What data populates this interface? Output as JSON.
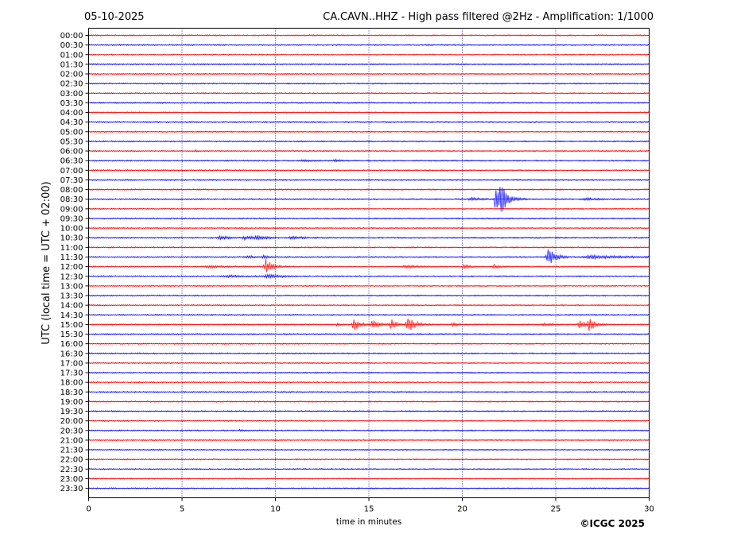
{
  "header": {
    "date": "05-10-2025",
    "title": "CA.CAVN..HHZ - High pass filtered @2Hz - Amplification: 1/1000"
  },
  "footer": {
    "copyright": "©ICGC 2025"
  },
  "colors": {
    "trace_a": "#ff0000",
    "trace_b": "#0000ff",
    "grid": "#000080",
    "axes": "#000000"
  },
  "chart_data": {
    "type": "line",
    "title": "CA.CAVN..HHZ - High pass filtered @2Hz - Amplification: 1/1000",
    "xlabel": "time in minutes",
    "ylabel": "UTC (local time = UTC + 02:00)",
    "xlim": [
      0,
      30
    ],
    "x_ticks": [
      "0",
      "5",
      "10",
      "15",
      "20",
      "25",
      "30"
    ],
    "x_tick_values": [
      0,
      5,
      10,
      15,
      20,
      25,
      30
    ],
    "vertical_gridlines_at": [
      5,
      10,
      15,
      20,
      25
    ],
    "grid": "vertical dotted",
    "trace_color_cycle": [
      "red",
      "blue"
    ],
    "y_tick_labels": [
      "00:00",
      "00:30",
      "01:00",
      "01:30",
      "02:00",
      "02:30",
      "03:00",
      "03:30",
      "04:00",
      "04:30",
      "05:00",
      "05:30",
      "06:00",
      "06:30",
      "07:00",
      "07:30",
      "08:00",
      "08:30",
      "09:00",
      "09:30",
      "10:00",
      "10:30",
      "11:00",
      "11:30",
      "12:00",
      "12:30",
      "13:00",
      "13:30",
      "14:00",
      "14:30",
      "15:00",
      "15:30",
      "16:00",
      "16:30",
      "17:00",
      "17:30",
      "18:00",
      "18:30",
      "19:00",
      "19:30",
      "20:00",
      "20:30",
      "21:00",
      "21:30",
      "22:00",
      "22:30",
      "23:00",
      "23:30"
    ],
    "noise_level": 0.6,
    "events": [
      {
        "row": "06:00",
        "t": 5.7,
        "amp": 2,
        "dur": 0.1
      },
      {
        "row": "06:30",
        "t": 11.5,
        "amp": 1.2,
        "dur": 0.8
      },
      {
        "row": "06:30",
        "t": 13.2,
        "amp": 1.2,
        "dur": 0.5
      },
      {
        "row": "08:30",
        "t": 20.5,
        "amp": 2,
        "dur": 0.8
      },
      {
        "row": "08:30",
        "t": 21.8,
        "amp": 24,
        "dur": 0.3
      },
      {
        "row": "08:30",
        "t": 22.1,
        "amp": 17,
        "dur": 0.6
      },
      {
        "row": "08:30",
        "t": 26.6,
        "amp": 2,
        "dur": 0.8
      },
      {
        "row": "10:30",
        "t": 7.0,
        "amp": 2.5,
        "dur": 0.8
      },
      {
        "row": "10:30",
        "t": 8.4,
        "amp": 2,
        "dur": 0.8
      },
      {
        "row": "10:30",
        "t": 9.0,
        "amp": 3,
        "dur": 0.6
      },
      {
        "row": "10:30",
        "t": 10.9,
        "amp": 2,
        "dur": 0.8
      },
      {
        "row": "11:30",
        "t": 8.5,
        "amp": 2,
        "dur": 0.5
      },
      {
        "row": "11:30",
        "t": 9.4,
        "amp": 2,
        "dur": 0.5
      },
      {
        "row": "11:30",
        "t": 24.6,
        "amp": 12,
        "dur": 0.6
      },
      {
        "row": "11:30",
        "t": 27.0,
        "amp": 2,
        "dur": 3
      },
      {
        "row": "12:00",
        "t": 6.5,
        "amp": 1.5,
        "dur": 1.5
      },
      {
        "row": "12:00",
        "t": 9.5,
        "amp": 9,
        "dur": 0.6
      },
      {
        "row": "12:00",
        "t": 17.0,
        "amp": 1.5,
        "dur": 1.2
      },
      {
        "row": "12:00",
        "t": 20.1,
        "amp": 4,
        "dur": 0.4
      },
      {
        "row": "12:00",
        "t": 21.7,
        "amp": 3.5,
        "dur": 0.4
      },
      {
        "row": "12:30",
        "t": 7.5,
        "amp": 1.5,
        "dur": 1.0
      },
      {
        "row": "12:30",
        "t": 9.6,
        "amp": 2.5,
        "dur": 1.0
      },
      {
        "row": "15:00",
        "t": 13.3,
        "amp": 2,
        "dur": 0.3
      },
      {
        "row": "15:00",
        "t": 14.2,
        "amp": 10,
        "dur": 0.4
      },
      {
        "row": "15:00",
        "t": 15.2,
        "amp": 5,
        "dur": 0.6
      },
      {
        "row": "15:00",
        "t": 16.2,
        "amp": 6,
        "dur": 0.5
      },
      {
        "row": "15:00",
        "t": 17.1,
        "amp": 10,
        "dur": 0.6
      },
      {
        "row": "15:00",
        "t": 19.5,
        "amp": 3,
        "dur": 0.4
      },
      {
        "row": "15:00",
        "t": 24.4,
        "amp": 1.5,
        "dur": 0.8
      },
      {
        "row": "15:00",
        "t": 26.3,
        "amp": 7,
        "dur": 0.4
      },
      {
        "row": "15:00",
        "t": 26.8,
        "amp": 10,
        "dur": 0.5
      },
      {
        "row": "20:30",
        "t": 8.1,
        "amp": 1.5,
        "dur": 0.2
      }
    ]
  }
}
